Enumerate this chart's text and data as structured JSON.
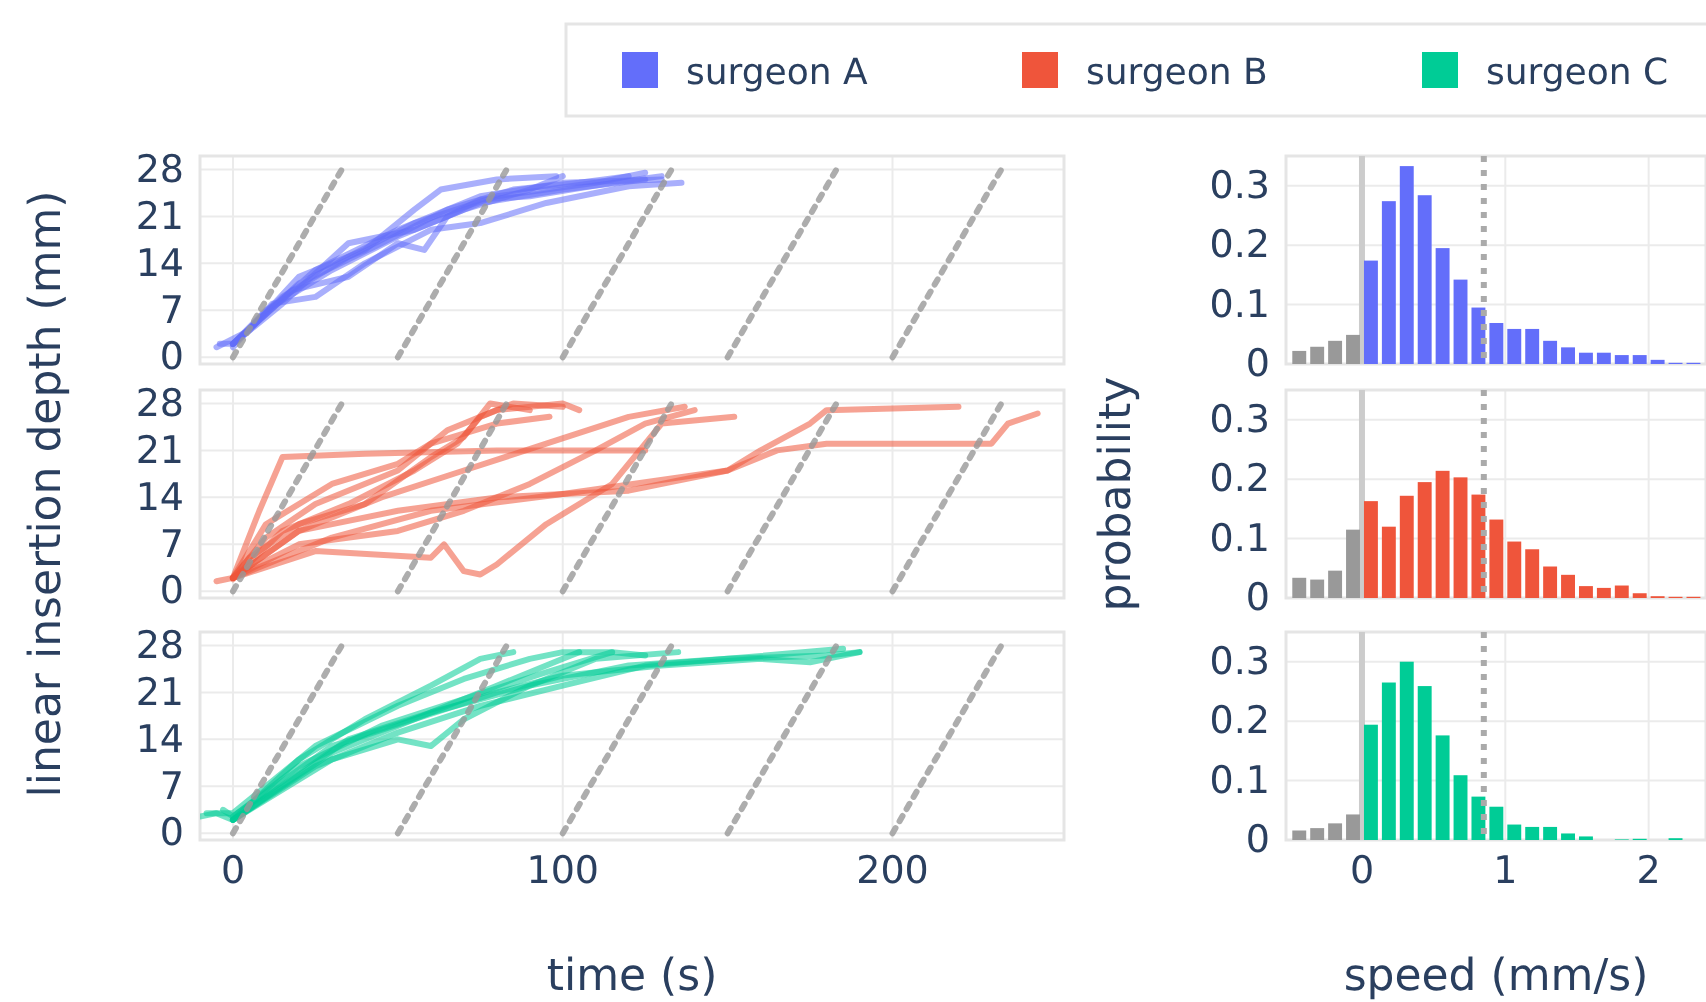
{
  "chart_data": [
    {
      "type": "line",
      "xlim": [
        -10,
        252
      ],
      "ylim": [
        -1,
        30
      ],
      "xticks": [
        0,
        100,
        200
      ],
      "yticks": [
        0,
        7,
        14,
        21,
        28
      ],
      "grid": true,
      "tick_labels": "y",
      "legend": "top",
      "series": [
        {
          "name": "surgeon A",
          "color": "#636efa",
          "x": [
            -4,
            0,
            10,
            30,
            50,
            70,
            90,
            100
          ],
          "values": [
            2,
            2,
            7,
            13,
            18,
            22,
            25,
            27
          ]
        },
        {
          "color": "#636efa",
          "x": [
            0,
            15,
            35,
            55,
            80,
            110,
            125
          ],
          "values": [
            2,
            9,
            15,
            20,
            24,
            26,
            27.5
          ]
        },
        {
          "color": "#636efa",
          "x": [
            0,
            12,
            25,
            40,
            60,
            75,
            95,
            120,
            136
          ],
          "values": [
            1.5,
            8,
            9,
            14,
            19,
            20,
            23,
            25.5,
            26
          ]
        },
        {
          "color": "#636efa",
          "x": [
            0,
            20,
            45,
            65,
            85,
            105,
            120
          ],
          "values": [
            2,
            11,
            17,
            22,
            25,
            26,
            27
          ]
        },
        {
          "color": "#636efa",
          "x": [
            0,
            18,
            35,
            50,
            58,
            65,
            75,
            90,
            115,
            130
          ],
          "values": [
            2,
            10,
            12,
            17,
            16,
            21,
            23.5,
            24,
            26,
            27
          ]
        },
        {
          "color": "#636efa",
          "x": [
            -5,
            5,
            20,
            40,
            55,
            63,
            80,
            98
          ],
          "values": [
            1.5,
            4,
            12,
            16,
            22,
            25,
            26.5,
            27
          ]
        },
        {
          "color": "#636efa",
          "x": [
            0,
            25,
            50,
            75,
            100,
            130
          ],
          "values": [
            2,
            13,
            19,
            24,
            26,
            26.5
          ]
        },
        {
          "color": "#636efa",
          "x": [
            0,
            15,
            35,
            55,
            75,
            100,
            125
          ],
          "values": [
            2,
            8,
            17,
            19,
            23,
            25,
            26.5
          ]
        },
        {
          "color": "#999999",
          "line_style": "dashed",
          "x": [
            0,
            33
          ],
          "values": [
            0,
            28
          ]
        },
        {
          "color": "#999999",
          "line_style": "dashed",
          "x": [
            50,
            83
          ],
          "values": [
            0,
            28
          ]
        },
        {
          "color": "#999999",
          "line_style": "dashed",
          "x": [
            100,
            133
          ],
          "values": [
            0,
            28
          ]
        },
        {
          "color": "#999999",
          "line_style": "dashed",
          "x": [
            150,
            183
          ],
          "values": [
            0,
            28
          ]
        },
        {
          "color": "#999999",
          "line_style": "dashed",
          "x": [
            200,
            233
          ],
          "values": [
            0,
            28
          ]
        }
      ]
    },
    {
      "type": "line",
      "xlim": [
        -10,
        252
      ],
      "ylim": [
        -1,
        30
      ],
      "xticks": [
        0,
        100,
        200
      ],
      "yticks": [
        0,
        7,
        14,
        21,
        28
      ],
      "grid": true,
      "tick_labels": "y",
      "legend": "top",
      "ylabel": "linear insertion depth (mm)",
      "series": [
        {
          "name": "surgeon B",
          "color": "#ef553b",
          "x": [
            0,
            5,
            20,
            40,
            60,
            70,
            78,
            90
          ],
          "values": [
            2,
            5,
            10,
            13,
            20,
            23,
            28,
            27
          ]
        },
        {
          "color": "#ef553b",
          "x": [
            0,
            10,
            25,
            50,
            65,
            80,
            100,
            105
          ],
          "values": [
            2,
            8,
            13,
            18,
            24,
            27,
            28,
            27
          ]
        },
        {
          "color": "#ef553b",
          "x": [
            -5,
            0,
            8,
            15,
            40,
            80,
            110,
            125
          ],
          "values": [
            1.5,
            2,
            12,
            20,
            20.5,
            21,
            21,
            21
          ]
        },
        {
          "color": "#ef553b",
          "x": [
            0,
            20,
            50,
            70,
            90,
            110,
            125,
            140
          ],
          "values": [
            2,
            7,
            9,
            12,
            16,
            21,
            25,
            27
          ]
        },
        {
          "color": "#ef553b",
          "x": [
            0,
            25,
            60,
            64,
            70,
            75,
            80,
            95,
            115,
            130,
            152
          ],
          "values": [
            2,
            6,
            5,
            7,
            3,
            2.5,
            4,
            10,
            16,
            25,
            26
          ]
        },
        {
          "color": "#ef553b",
          "x": [
            0,
            20,
            50,
            80,
            120,
            150,
            160,
            175,
            180,
            220
          ],
          "values": [
            2,
            9,
            12,
            14,
            15,
            18,
            21,
            25,
            27,
            27.5
          ]
        },
        {
          "color": "#ef553b",
          "x": [
            0,
            30,
            60,
            100,
            150,
            165,
            180,
            200,
            230,
            235,
            244
          ],
          "values": [
            2,
            8,
            12,
            14.5,
            18,
            21,
            22,
            22,
            22,
            25,
            26.5
          ]
        },
        {
          "color": "#ef553b",
          "x": [
            0,
            15,
            35,
            55,
            68,
            75,
            85,
            100
          ],
          "values": [
            1.8,
            9,
            13,
            18,
            22,
            26,
            28,
            27.5
          ]
        },
        {
          "color": "#ef553b",
          "x": [
            0,
            20,
            45,
            70,
            95,
            120,
            137
          ],
          "values": [
            2,
            9,
            14,
            18,
            22,
            26,
            27.5
          ]
        },
        {
          "color": "#ef553b",
          "x": [
            0,
            10,
            30,
            50,
            60,
            80,
            96
          ],
          "values": [
            2,
            10,
            16,
            19,
            22,
            25,
            26
          ]
        },
        {
          "color": "#999999",
          "line_style": "dashed",
          "x": [
            0,
            33
          ],
          "values": [
            0,
            28
          ]
        },
        {
          "color": "#999999",
          "line_style": "dashed",
          "x": [
            50,
            83
          ],
          "values": [
            0,
            28
          ]
        },
        {
          "color": "#999999",
          "line_style": "dashed",
          "x": [
            100,
            133
          ],
          "values": [
            0,
            28
          ]
        },
        {
          "color": "#999999",
          "line_style": "dashed",
          "x": [
            150,
            183
          ],
          "values": [
            0,
            28
          ]
        },
        {
          "color": "#999999",
          "line_style": "dashed",
          "x": [
            200,
            233
          ],
          "values": [
            0,
            28
          ]
        }
      ]
    },
    {
      "type": "line",
      "xlim": [
        -10,
        252
      ],
      "ylim": [
        -1,
        30
      ],
      "xticks": [
        0,
        100,
        200
      ],
      "yticks": [
        0,
        7,
        14,
        21,
        28
      ],
      "grid": true,
      "legend": "top",
      "xlabel": "time (s)",
      "series": [
        {
          "name": "surgeon C",
          "color": "#00cc96",
          "x": [
            -10,
            -5,
            0,
            20,
            40,
            60,
            75,
            85
          ],
          "values": [
            2.5,
            3,
            2,
            11,
            17,
            22,
            26,
            27
          ]
        },
        {
          "color": "#00cc96",
          "x": [
            -8,
            0,
            25,
            50,
            70,
            90,
            100,
            115
          ],
          "values": [
            3,
            3,
            13,
            19,
            23,
            26,
            27,
            27
          ]
        },
        {
          "color": "#00cc96",
          "x": [
            0,
            30,
            60,
            90,
            120,
            150,
            180,
            190
          ],
          "values": [
            2,
            12,
            18,
            22,
            25,
            26,
            26.5,
            27
          ]
        },
        {
          "color": "#00cc96",
          "x": [
            0,
            30,
            50,
            60,
            70,
            90,
            110,
            135
          ],
          "values": [
            2,
            11,
            14,
            13,
            17,
            22,
            26,
            27
          ]
        },
        {
          "color": "#00cc96",
          "x": [
            0,
            25,
            50,
            75,
            100,
            125,
            150,
            185
          ],
          "values": [
            2,
            10,
            15,
            19,
            22,
            25,
            26,
            27.5
          ]
        },
        {
          "color": "#00cc96",
          "x": [
            0,
            20,
            45,
            70,
            95,
            115,
            125
          ],
          "values": [
            2.5,
            10,
            16,
            20,
            24,
            27,
            26.5
          ]
        },
        {
          "color": "#00cc96",
          "x": [
            -3,
            0,
            30,
            55,
            80,
            100,
            130,
            160,
            175,
            190
          ],
          "values": [
            3.5,
            2.5,
            13,
            17,
            21,
            23.5,
            25,
            26,
            25.5,
            27
          ]
        },
        {
          "color": "#00cc96",
          "x": [
            0,
            35,
            60,
            80,
            100,
            105
          ],
          "values": [
            2,
            14,
            18,
            22,
            26,
            27
          ]
        },
        {
          "color": "#999999",
          "line_style": "dashed",
          "x": [
            0,
            33
          ],
          "values": [
            0,
            28
          ]
        },
        {
          "color": "#999999",
          "line_style": "dashed",
          "x": [
            50,
            83
          ],
          "values": [
            0,
            28
          ]
        },
        {
          "color": "#999999",
          "line_style": "dashed",
          "x": [
            100,
            133
          ],
          "values": [
            0,
            28
          ]
        },
        {
          "color": "#999999",
          "line_style": "dashed",
          "x": [
            150,
            183
          ],
          "values": [
            0,
            28
          ]
        },
        {
          "color": "#999999",
          "line_style": "dashed",
          "x": [
            200,
            233
          ],
          "values": [
            0,
            28
          ]
        }
      ]
    },
    {
      "type": "histogram",
      "xlim": [
        -0.53,
        2.4
      ],
      "ylim": [
        0,
        0.35
      ],
      "xticks": [
        0,
        1,
        2
      ],
      "yticks": [
        0,
        0.1,
        0.2,
        0.3
      ],
      "grid": true,
      "tick_labels": "y",
      "bins": [
        -0.5,
        -0.375,
        -0.25,
        -0.125,
        0,
        0.125,
        0.25,
        0.375,
        0.5,
        0.625,
        0.75,
        0.875,
        1,
        1.125,
        1.25,
        1.375,
        1.5,
        1.625,
        1.75,
        1.875,
        2,
        2.125,
        2.25,
        2.375
      ],
      "values": [
        0.022,
        0.029,
        0.039,
        0.049,
        0.174,
        0.274,
        0.333,
        0.284,
        0.195,
        0.142,
        0.095,
        0.069,
        0.059,
        0.059,
        0.039,
        0.028,
        0.019,
        0.019,
        0.015,
        0.015,
        0.007,
        0.002,
        0.002
      ],
      "colors": [
        "#999999",
        "#999999",
        "#999999",
        "#999999",
        "#636efa",
        "#636efa",
        "#636efa",
        "#636efa",
        "#636efa",
        "#636efa",
        "#636efa",
        "#636efa",
        "#636efa",
        "#636efa",
        "#636efa",
        "#636efa",
        "#636efa",
        "#636efa",
        "#636efa",
        "#636efa",
        "#636efa",
        "#636efa",
        "#636efa"
      ],
      "ref_lines": [
        {
          "axis": "x",
          "value": 0,
          "color": "#cccccc"
        },
        {
          "axis": "x",
          "value": 0.85,
          "color": "#aaaaaa",
          "line_style": "dashed"
        }
      ]
    },
    {
      "type": "histogram",
      "xlim": [
        -0.53,
        2.4
      ],
      "ylim": [
        0,
        0.35
      ],
      "xticks": [
        0,
        1,
        2
      ],
      "yticks": [
        0,
        0.1,
        0.2,
        0.3
      ],
      "grid": true,
      "tick_labels": "y",
      "ylabel": "probability",
      "bins": [
        -0.5,
        -0.375,
        -0.25,
        -0.125,
        0,
        0.125,
        0.25,
        0.375,
        0.5,
        0.625,
        0.75,
        0.875,
        1,
        1.125,
        1.25,
        1.375,
        1.5,
        1.625,
        1.75,
        1.875,
        2,
        2.125,
        2.25,
        2.375
      ],
      "values": [
        0.034,
        0.031,
        0.046,
        0.115,
        0.163,
        0.12,
        0.172,
        0.195,
        0.214,
        0.203,
        0.174,
        0.132,
        0.095,
        0.082,
        0.053,
        0.039,
        0.02,
        0.017,
        0.021,
        0.008,
        0.003,
        0.002,
        0.002
      ],
      "colors": [
        "#999999",
        "#999999",
        "#999999",
        "#999999",
        "#ef553b",
        "#ef553b",
        "#ef553b",
        "#ef553b",
        "#ef553b",
        "#ef553b",
        "#ef553b",
        "#ef553b",
        "#ef553b",
        "#ef553b",
        "#ef553b",
        "#ef553b",
        "#ef553b",
        "#ef553b",
        "#ef553b",
        "#ef553b",
        "#ef553b",
        "#ef553b",
        "#ef553b"
      ],
      "ref_lines": [
        {
          "axis": "x",
          "value": 0,
          "color": "#cccccc"
        },
        {
          "axis": "x",
          "value": 0.85,
          "color": "#aaaaaa",
          "line_style": "dashed"
        }
      ]
    },
    {
      "type": "histogram",
      "xlim": [
        -0.53,
        2.4
      ],
      "ylim": [
        0,
        0.35
      ],
      "xticks": [
        0,
        1,
        2
      ],
      "yticks": [
        0,
        0.1,
        0.2,
        0.3
      ],
      "grid": true,
      "xlabel": "speed (mm/s)",
      "bins": [
        -0.5,
        -0.375,
        -0.25,
        -0.125,
        0,
        0.125,
        0.25,
        0.375,
        0.5,
        0.625,
        0.75,
        0.875,
        1,
        1.125,
        1.25,
        1.375,
        1.5,
        1.625,
        1.75,
        1.875,
        2,
        2.125,
        2.25,
        2.375
      ],
      "values": [
        0.016,
        0.02,
        0.028,
        0.043,
        0.194,
        0.265,
        0.3,
        0.259,
        0.176,
        0.109,
        0.073,
        0.056,
        0.026,
        0.022,
        0.022,
        0.011,
        0.006,
        0,
        0.001,
        0.002,
        0,
        0.003,
        0
      ],
      "colors": [
        "#999999",
        "#999999",
        "#999999",
        "#999999",
        "#00cc96",
        "#00cc96",
        "#00cc96",
        "#00cc96",
        "#00cc96",
        "#00cc96",
        "#00cc96",
        "#00cc96",
        "#00cc96",
        "#00cc96",
        "#00cc96",
        "#00cc96",
        "#00cc96",
        "#00cc96",
        "#00cc96",
        "#00cc96",
        "#00cc96",
        "#00cc96",
        "#00cc96"
      ],
      "ref_lines": [
        {
          "axis": "x",
          "value": 0,
          "color": "#cccccc"
        },
        {
          "axis": "x",
          "value": 0.85,
          "color": "#aaaaaa",
          "line_style": "dashed"
        }
      ]
    }
  ]
}
